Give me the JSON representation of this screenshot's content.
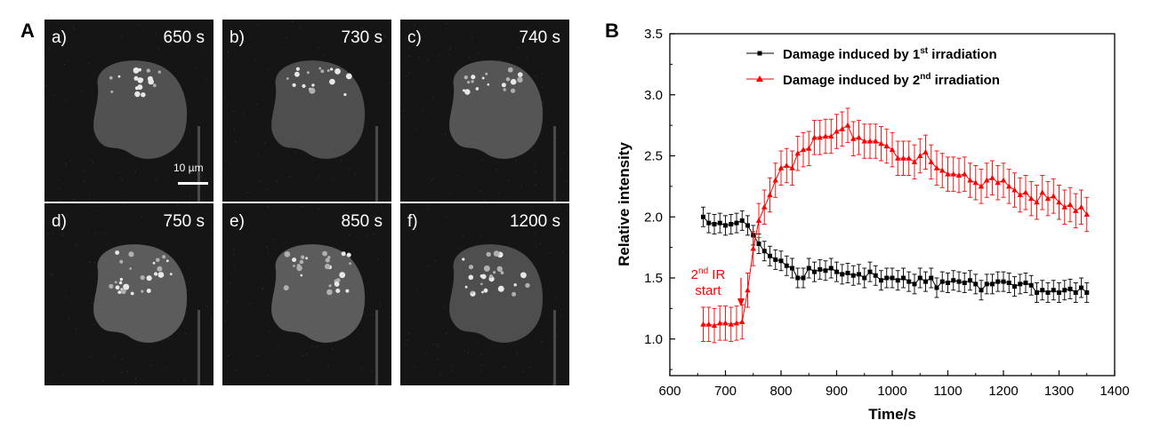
{
  "panel_a": {
    "letter": "A",
    "scale_bar_label": "10 µm",
    "images": [
      {
        "label": "a)",
        "time": "650 s"
      },
      {
        "label": "b)",
        "time": "730 s"
      },
      {
        "label": "c)",
        "time": "740 s"
      },
      {
        "label": "d)",
        "time": "750 s"
      },
      {
        "label": "e)",
        "time": "850 s"
      },
      {
        "label": "f)",
        "time": "1200 s"
      }
    ]
  },
  "panel_b": {
    "letter": "B",
    "annotation": {
      "line1_main": "2",
      "line1_sup": "nd",
      "line1_rest": " IR",
      "line2": "start"
    }
  },
  "chart_data": {
    "type": "line",
    "xlabel": "Time/s",
    "ylabel": "Relative intensity",
    "xlim": [
      600,
      1400
    ],
    "ylim": [
      0.7,
      3.5
    ],
    "xticks": [
      600,
      700,
      800,
      900,
      1000,
      1100,
      1200,
      1300,
      1400
    ],
    "yticks": [
      1.0,
      1.5,
      2.0,
      2.5,
      3.0,
      3.5
    ],
    "legend_position": "top",
    "series": [
      {
        "name": "Damage induced by 1st irradiation",
        "legend_main": "Damage induced by 1",
        "legend_sup": "st",
        "legend_rest": "  irradiation",
        "color": "#000000",
        "marker": "square",
        "x": [
          660,
          670,
          680,
          690,
          700,
          710,
          720,
          730,
          740,
          750,
          760,
          770,
          780,
          790,
          800,
          810,
          820,
          830,
          840,
          850,
          860,
          870,
          880,
          890,
          900,
          910,
          920,
          930,
          940,
          950,
          960,
          970,
          980,
          990,
          1000,
          1010,
          1020,
          1030,
          1040,
          1050,
          1060,
          1070,
          1080,
          1090,
          1100,
          1110,
          1120,
          1130,
          1140,
          1150,
          1160,
          1170,
          1180,
          1190,
          1200,
          1210,
          1220,
          1230,
          1240,
          1250,
          1260,
          1270,
          1280,
          1290,
          1300,
          1310,
          1320,
          1330,
          1340,
          1350
        ],
        "y": [
          2.0,
          1.95,
          1.94,
          1.95,
          1.93,
          1.94,
          1.95,
          1.97,
          1.93,
          1.85,
          1.78,
          1.72,
          1.68,
          1.65,
          1.64,
          1.6,
          1.58,
          1.5,
          1.5,
          1.58,
          1.55,
          1.57,
          1.56,
          1.58,
          1.55,
          1.53,
          1.54,
          1.52,
          1.53,
          1.5,
          1.55,
          1.52,
          1.48,
          1.5,
          1.5,
          1.48,
          1.5,
          1.47,
          1.45,
          1.5,
          1.47,
          1.5,
          1.42,
          1.47,
          1.46,
          1.48,
          1.47,
          1.46,
          1.48,
          1.45,
          1.4,
          1.45,
          1.45,
          1.47,
          1.47,
          1.46,
          1.43,
          1.45,
          1.46,
          1.44,
          1.38,
          1.4,
          1.38,
          1.4,
          1.38,
          1.4,
          1.41,
          1.38,
          1.42,
          1.38
        ],
        "error": 0.08
      },
      {
        "name": "Damage induced by 2nd irradiation",
        "legend_main": "Damage induced by 2",
        "legend_sup": "nd",
        "legend_rest": " irradiation",
        "color": "#ff0000",
        "marker": "triangle",
        "x": [
          660,
          670,
          680,
          690,
          700,
          710,
          720,
          730,
          740,
          750,
          760,
          770,
          780,
          790,
          800,
          810,
          820,
          830,
          840,
          850,
          860,
          870,
          880,
          890,
          900,
          910,
          920,
          930,
          940,
          950,
          960,
          970,
          980,
          990,
          1000,
          1010,
          1020,
          1030,
          1040,
          1050,
          1060,
          1070,
          1080,
          1090,
          1100,
          1110,
          1120,
          1130,
          1140,
          1150,
          1160,
          1170,
          1180,
          1190,
          1200,
          1210,
          1220,
          1230,
          1240,
          1250,
          1260,
          1270,
          1280,
          1290,
          1300,
          1310,
          1320,
          1330,
          1340,
          1350
        ],
        "y": [
          1.12,
          1.12,
          1.11,
          1.13,
          1.13,
          1.12,
          1.13,
          1.14,
          1.4,
          1.74,
          1.97,
          2.08,
          2.18,
          2.3,
          2.4,
          2.42,
          2.4,
          2.52,
          2.55,
          2.56,
          2.65,
          2.65,
          2.66,
          2.66,
          2.7,
          2.72,
          2.75,
          2.64,
          2.65,
          2.62,
          2.62,
          2.62,
          2.6,
          2.58,
          2.55,
          2.48,
          2.48,
          2.48,
          2.45,
          2.5,
          2.53,
          2.45,
          2.4,
          2.38,
          2.35,
          2.35,
          2.34,
          2.35,
          2.3,
          2.28,
          2.25,
          2.3,
          2.32,
          2.28,
          2.3,
          2.25,
          2.22,
          2.18,
          2.2,
          2.15,
          2.12,
          2.2,
          2.15,
          2.17,
          2.12,
          2.08,
          2.1,
          2.05,
          2.08,
          2.02
        ],
        "error": 0.14
      }
    ]
  }
}
